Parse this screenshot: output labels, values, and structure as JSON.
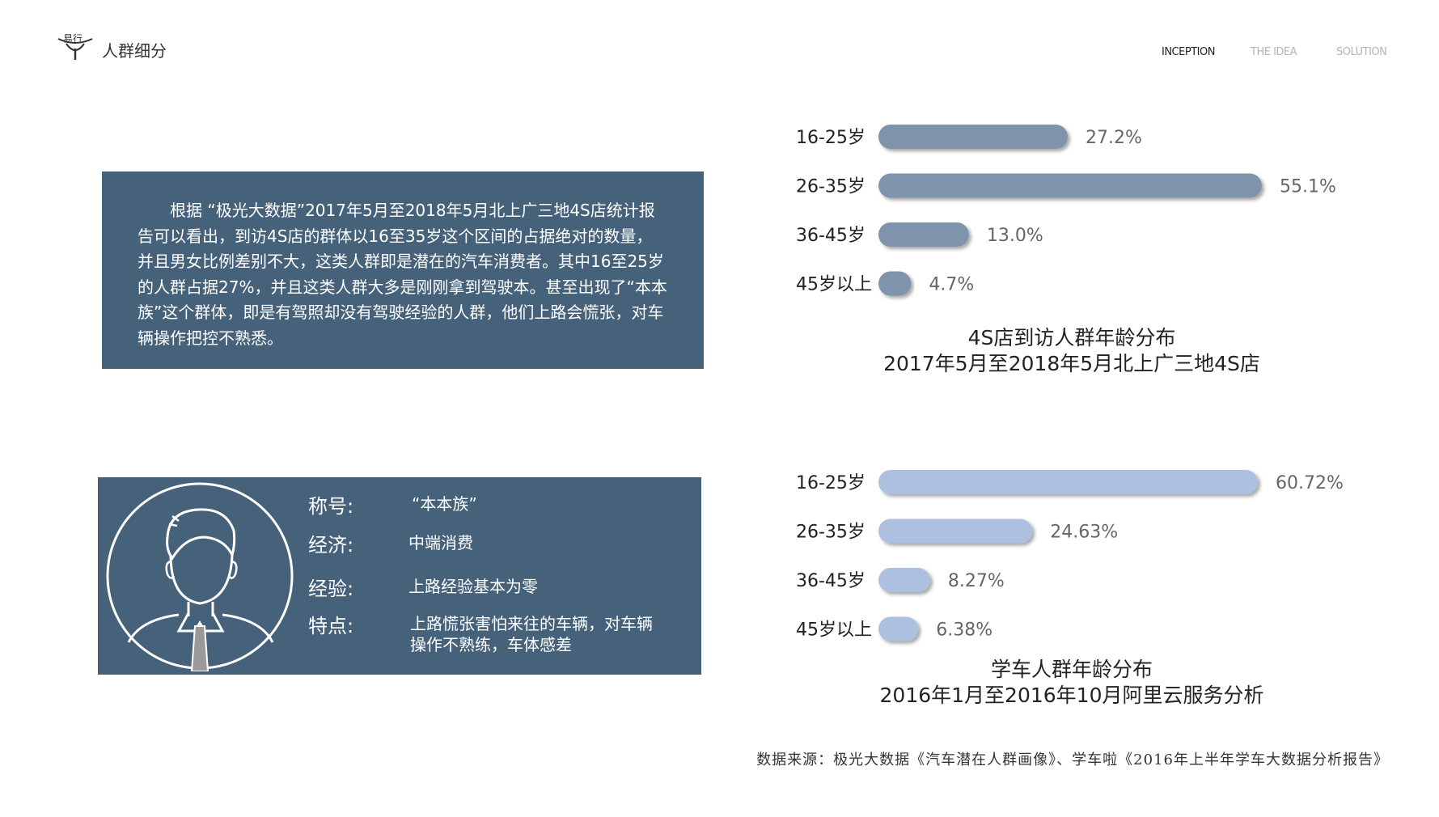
{
  "header": {
    "logo_text": "易行",
    "title": "人群细分",
    "nav": [
      "INCEPTION",
      "THE IDEA",
      "SOLUTION"
    ]
  },
  "panel_text": "根据 “极光大数据”2017年5月至2018年5月北上广三地4S店统计报告可以看出，到访4S店的群体以16至35岁这个区间的占据绝对的数量，并且男女比例差别不大，这类人群即是潜在的汽车消费者。其中16至25岁的人群占据27%，并且这类人群大多是刚刚拿到驾驶本。甚至出现了“本本族”这个群体，即是有驾照却没有驾驶经验的人群，他们上路会慌张，对车辆操作把控不熟悉。",
  "profile": {
    "avatar_icon": "person-avatar-icon",
    "fields": [
      {
        "label": "称号:",
        "value": "“本本族”"
      },
      {
        "label": "经济:",
        "value": "中端消费"
      },
      {
        "label": "经验:",
        "value": "上路经验基本为零"
      },
      {
        "label": "特点:",
        "value": "上路慌张害怕来往的车辆，对车辆操作不熟练，车体感差"
      }
    ]
  },
  "chart_data": [
    {
      "type": "bar",
      "orientation": "horizontal",
      "title": "4S店到访人群年龄分布",
      "subtitle": "2017年5月至2018年5月北上广三地4S店",
      "categories": [
        "16-25岁",
        "26-35岁",
        "36-45岁",
        "45岁以上"
      ],
      "values": [
        27.2,
        55.1,
        13.0,
        4.7
      ],
      "value_labels": [
        "27.2%",
        "55.1%",
        "13.0%",
        "4.7%"
      ],
      "color": "#7f93ad"
    },
    {
      "type": "bar",
      "orientation": "horizontal",
      "title": "学车人群年龄分布",
      "subtitle": "2016年1月至2016年10月阿里云服务分析",
      "categories": [
        "16-25岁",
        "26-35岁",
        "36-45岁",
        "45岁以上"
      ],
      "values": [
        60.72,
        24.63,
        8.27,
        6.38
      ],
      "value_labels": [
        "60.72%",
        "24.63%",
        "8.27%",
        "6.38%"
      ],
      "color": "#adc0e0"
    }
  ],
  "source": "数据来源：极光大数据《汽车潜在人群画像》、学车啦《2016年上半年学车大数据分析报告》"
}
